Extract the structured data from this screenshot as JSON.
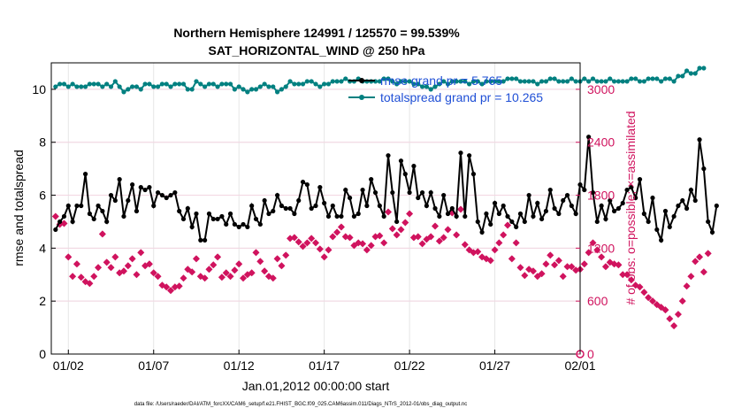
{
  "chart_data": {
    "type": "line",
    "title_line1": "Northern Hemisphere 124991 / 125570 = 99.539%",
    "title_line2": "SAT_HORIZONTAL_WIND @ 250 hPa",
    "xlabel": "Jan.01,2012 00:00:00 start",
    "ylabel_left": "rmse and totalspread",
    "ylabel_right": "# of obs: o=possible; ×=assimilated",
    "footnote": "data file: /Users/raeder/DAI/ATM_forcXX/CAM6_setup/f.e21.FHIST_BGC.f09_025.CAM6assim.011/Diags_NTrS_2012-01/obs_diag_output.nc",
    "x_ticks": [
      "01/02",
      "01/07",
      "01/12",
      "01/17",
      "01/22",
      "01/27",
      "02/01"
    ],
    "x_tick_days": [
      1,
      6,
      11,
      16,
      21,
      26,
      31
    ],
    "xlim_days": [
      0,
      31
    ],
    "ylim_left": [
      0,
      11
    ],
    "yticks_left": [
      0,
      2,
      4,
      6,
      8,
      10
    ],
    "ylim_right": [
      0,
      3300
    ],
    "yticks_right": [
      0,
      600,
      1200,
      1800,
      2400,
      3000
    ],
    "grid": true,
    "legend_position": "top-right",
    "colors": {
      "rmse": "#000000",
      "totalspread": "#008080",
      "obs": "#d0135e"
    },
    "series": [
      {
        "name": "rmse grand pr = 5.765",
        "axis": "left",
        "x_start_day": 0.25,
        "x_step_day": 0.25,
        "values": [
          4.7,
          5.0,
          5.2,
          5.6,
          5.0,
          5.6,
          5.6,
          6.8,
          5.3,
          5.1,
          5.6,
          5.4,
          5.0,
          6.0,
          5.8,
          6.6,
          5.2,
          5.8,
          6.4,
          5.4,
          6.3,
          6.2,
          6.3,
          5.6,
          6.1,
          6.0,
          5.9,
          6.0,
          6.1,
          5.4,
          5.1,
          5.5,
          4.8,
          5.3,
          4.3,
          4.3,
          5.3,
          5.1,
          5.1,
          5.2,
          4.9,
          5.3,
          4.9,
          4.8,
          4.9,
          4.8,
          5.6,
          5.1,
          4.9,
          5.8,
          5.3,
          5.4,
          6.0,
          5.6,
          5.5,
          5.5,
          5.3,
          5.8,
          6.5,
          6.4,
          5.5,
          5.6,
          6.3,
          5.7,
          5.2,
          5.6,
          5.2,
          5.2,
          6.2,
          5.9,
          5.2,
          5.3,
          6.2,
          5.6,
          6.6,
          6.1,
          5.6,
          5.2,
          7.5,
          6.1,
          5.0,
          7.3,
          6.8,
          6.1,
          7.1,
          5.9,
          6.1,
          5.6,
          6.1,
          5.5,
          5.2,
          6.0,
          5.3,
          5.5,
          5.2,
          7.6,
          5.2,
          7.5,
          6.8,
          5.0,
          4.6,
          5.3,
          4.9,
          5.7,
          5.3,
          5.6,
          5.2,
          5.0,
          4.8,
          5.3,
          5.0,
          6.0,
          5.2,
          5.7,
          5.1,
          5.4,
          6.2,
          5.5,
          5.3,
          5.8,
          6.0,
          5.6,
          5.3,
          6.4,
          6.2,
          8.2,
          6.1,
          5.0,
          5.6,
          5.1,
          5.8,
          5.4,
          5.5,
          5.7,
          6.2,
          6.3,
          5.9,
          6.6,
          5.3,
          5.0,
          5.9,
          4.7,
          4.3,
          5.4,
          4.8,
          5.2,
          5.6,
          5.8,
          5.5,
          6.2,
          5.8,
          8.1,
          7.0,
          5.0,
          4.6,
          5.6
        ]
      },
      {
        "name": "totalspread grand pr = 10.265",
        "axis": "left",
        "x_start_day": 0.25,
        "x_step_day": 0.25,
        "values": [
          10.1,
          10.2,
          10.2,
          10.1,
          10.2,
          10.1,
          10.1,
          10.1,
          10.2,
          10.2,
          10.2,
          10.1,
          10.2,
          10.1,
          10.3,
          10.1,
          9.9,
          10.0,
          10.1,
          10.1,
          10.0,
          10.2,
          10.2,
          10.1,
          10.1,
          10.2,
          10.2,
          10.1,
          10.2,
          10.2,
          10.2,
          10.0,
          10.0,
          10.3,
          10.2,
          10.1,
          10.2,
          10.2,
          10.1,
          10.2,
          10.2,
          10.2,
          10.0,
          10.1,
          10.0,
          9.9,
          10.0,
          10.0,
          10.1,
          10.2,
          10.1,
          10.1,
          9.9,
          10.0,
          10.1,
          10.3,
          10.2,
          10.2,
          10.2,
          10.3,
          10.3,
          10.2,
          10.1,
          10.2,
          10.2,
          10.3,
          10.3,
          10.3,
          10.4,
          10.3,
          10.3,
          10.4,
          10.3,
          10.3,
          10.3,
          10.3,
          10.3,
          10.4,
          10.4,
          10.3,
          10.2,
          10.3,
          10.3,
          10.3,
          10.2,
          10.2,
          10.1,
          10.1,
          10.0,
          10.1,
          10.2,
          10.3,
          10.2,
          10.3,
          10.3,
          10.3,
          10.3,
          10.2,
          10.3,
          10.3,
          10.2,
          10.3,
          10.3,
          10.3,
          10.3,
          10.3,
          10.4,
          10.4,
          10.4,
          10.3,
          10.3,
          10.3,
          10.3,
          10.2,
          10.3,
          10.3,
          10.4,
          10.4,
          10.3,
          10.3,
          10.3,
          10.4,
          10.3,
          10.3,
          10.4,
          10.3,
          10.4,
          10.3,
          10.3,
          10.3,
          10.4,
          10.3,
          10.3,
          10.3,
          10.3,
          10.4,
          10.4,
          10.3,
          10.3,
          10.4,
          10.4,
          10.4,
          10.3,
          10.4,
          10.4,
          10.3,
          10.5,
          10.5,
          10.7,
          10.6,
          10.6,
          10.8,
          10.8
        ]
      },
      {
        "name": "obs assimilated",
        "axis": "right",
        "marker": "star",
        "x_start_day": 0.25,
        "x_step_day": 0.25,
        "values": [
          1560,
          1470,
          1480,
          1100,
          880,
          1020,
          870,
          820,
          800,
          880,
          980,
          1360,
          1040,
          980,
          1100,
          920,
          940,
          1000,
          1080,
          900,
          1150,
          1000,
          1020,
          920,
          880,
          780,
          760,
          720,
          760,
          770,
          860,
          960,
          930,
          1080,
          880,
          860,
          960,
          1010,
          1100,
          870,
          920,
          880,
          950,
          1020,
          860,
          900,
          920,
          1150,
          1050,
          940,
          880,
          860,
          1080,
          1000,
          1120,
          1310,
          1320,
          1270,
          1220,
          1260,
          1310,
          1260,
          1190,
          1100,
          1180,
          1330,
          1380,
          1440,
          1330,
          1320,
          1230,
          1260,
          1250,
          1180,
          1230,
          1330,
          1340,
          1260,
          1610,
          1420,
          1350,
          1410,
          1490,
          1590,
          1320,
          1330,
          1250,
          1300,
          1330,
          1450,
          1280,
          1320,
          1410,
          1600,
          1350,
          1640,
          1240,
          1180,
          1150,
          1160,
          1100,
          1080,
          1060,
          1180,
          1260,
          1350,
          1460,
          1080,
          1260,
          980,
          890,
          960,
          940,
          880,
          910,
          1020,
          1120,
          1010,
          1060,
          880,
          990,
          990,
          950,
          960,
          1020,
          1150,
          1260,
          1180,
          1100,
          990,
          1040,
          1020,
          1010,
          900,
          900,
          840,
          780,
          760,
          700,
          640,
          600,
          560,
          530,
          500,
          400,
          320,
          450,
          600,
          770,
          880,
          1050,
          1100,
          930,
          1140
        ]
      }
    ],
    "legend": [
      {
        "label": "rmse grand pr = 5.765",
        "color": "#000000"
      },
      {
        "label": "totalspread grand pr = 10.265",
        "color": "#008080"
      }
    ]
  }
}
